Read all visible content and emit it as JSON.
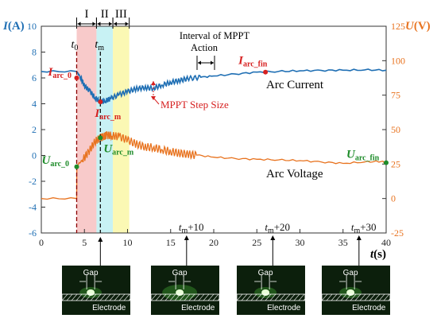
{
  "chart_data": {
    "type": "line",
    "x_axis": {
      "label": "t",
      "unit": "(s)",
      "range": [
        0,
        40
      ],
      "ticks": [
        0,
        5,
        10,
        15,
        20,
        25,
        30,
        35,
        40
      ],
      "tick_labels": [
        "0",
        "5",
        "10",
        "15",
        "20",
        "25",
        "30",
        "35",
        "40"
      ]
    },
    "y_left_axis": {
      "label": "I",
      "unit": "(A)",
      "range": [
        -6,
        10
      ],
      "ticks": [
        -6,
        -4,
        -2,
        0,
        2,
        4,
        6,
        8,
        10
      ],
      "tick_labels": [
        "-6",
        "-4",
        "-2",
        "0",
        "2",
        "4",
        "6",
        "8",
        "10"
      ]
    },
    "y_right_axis": {
      "label": "U",
      "unit": "(V)",
      "range": [
        -25,
        125
      ],
      "ticks": [
        -25,
        0,
        25,
        50,
        75,
        100,
        125
      ],
      "tick_labels": [
        "-25",
        "0",
        "25",
        "50",
        "75",
        "100",
        "125"
      ]
    },
    "series": [
      {
        "name": "Arc Current",
        "axis": "left",
        "color": "#1f6fb4",
        "x": [
          0,
          4.1,
          4.5,
          5.0,
          5.6,
          6.2,
          6.8,
          7.4,
          8.0,
          9.0,
          10.0,
          11.0,
          12.0,
          13.0,
          14.0,
          15.0,
          16.0,
          17.0,
          18.5,
          20.0,
          22.5,
          25.0,
          27.5,
          30.0,
          32.5,
          35.0,
          37.5,
          40.0
        ],
        "y": [
          6.5,
          6.5,
          6.1,
          5.4,
          5.0,
          4.5,
          4.15,
          4.2,
          4.4,
          4.7,
          4.95,
          5.15,
          5.25,
          5.2,
          5.45,
          5.65,
          5.8,
          5.95,
          6.05,
          6.15,
          6.3,
          6.45,
          6.5,
          6.55,
          6.58,
          6.6,
          6.62,
          6.6
        ]
      },
      {
        "name": "Arc Voltage",
        "axis": "right",
        "color": "#e8731f",
        "x": [
          0,
          4.1,
          4.12,
          4.3,
          4.8,
          5.5,
          6.2,
          6.8,
          7.2,
          7.6,
          8.2,
          9.0,
          10.0,
          11.0,
          12.0,
          13.0,
          14.0,
          15.0,
          16.0,
          17.0,
          18.0,
          20.0,
          22.5,
          25.0,
          27.5,
          30.0,
          32.5,
          35.0,
          37.5,
          39.5,
          40.0
        ],
        "y": [
          0,
          0,
          23,
          25,
          28,
          34,
          41,
          44,
          45,
          46,
          45.5,
          45,
          42.5,
          39.5,
          37.5,
          37,
          35.5,
          34,
          33,
          32,
          31.5,
          30,
          29,
          28.5,
          28,
          27.5,
          26.5,
          25.5,
          26.5,
          27,
          26
        ]
      }
    ],
    "annotations": {
      "regions": [
        {
          "label": "I",
          "x_start": 4.1,
          "x_end": 6.4,
          "color": "#f8caca"
        },
        {
          "label": "II",
          "x_start": 6.4,
          "x_end": 8.3,
          "color": "#c8f2f4"
        },
        {
          "label": "III",
          "x_start": 8.3,
          "x_end": 10.2,
          "color": "#fbf8b4"
        }
      ],
      "t0_label": "t",
      "t0_sub": "0",
      "tm_label": "t",
      "tm_sub": "m",
      "t0_x": 4.1,
      "tm_x": 6.85,
      "interval_title_1": "Interval of  MPPT",
      "interval_title_2": "Action",
      "mppt_step_size": "MPPT Step Size",
      "arc_current_label": "Arc Current",
      "arc_voltage_label": "Arc Voltage",
      "point_labels": [
        {
          "main": "I",
          "sub": "arc_0",
          "series": "Arc Current",
          "x": 4.1,
          "y": 6.0,
          "color": "#d62020"
        },
        {
          "main": "I",
          "sub": "arc_m",
          "series": "Arc Current",
          "x": 6.85,
          "y": 4.15,
          "color": "#d62020"
        },
        {
          "main": "I",
          "sub": "arc_fin",
          "series": "Arc Current",
          "x": 26.0,
          "y": 6.45,
          "color": "#d62020"
        },
        {
          "main": "U",
          "sub": "arc_0",
          "series": "Arc Voltage",
          "x": 4.1,
          "y": 23.0,
          "color": "#1e8c2a"
        },
        {
          "main": "U",
          "sub": "arc_m",
          "series": "Arc Voltage",
          "x": 6.85,
          "y": 44.0,
          "color": "#1e8c2a"
        },
        {
          "main": "U",
          "sub": "arc_fin",
          "series": "Arc Voltage",
          "x": 40.0,
          "y": 26.0,
          "color": "#1e8c2a"
        }
      ],
      "time_markers": [
        {
          "label": "t",
          "sub": "m",
          "suffix": "+10",
          "x": 16.85
        },
        {
          "label": "t",
          "sub": "m",
          "suffix": "+20",
          "x": 26.85
        },
        {
          "label": "t",
          "sub": "m",
          "suffix": "+30",
          "x": 36.85
        }
      ]
    },
    "inset_photos": [
      {
        "gap_label": "Gap",
        "electrode_label": "Electrode"
      },
      {
        "gap_label": "Gap",
        "electrode_label": "Electrode"
      },
      {
        "gap_label": "Gap",
        "electrode_label": "Electrode"
      },
      {
        "gap_label": "Gap",
        "electrode_label": "Electrode"
      }
    ]
  }
}
